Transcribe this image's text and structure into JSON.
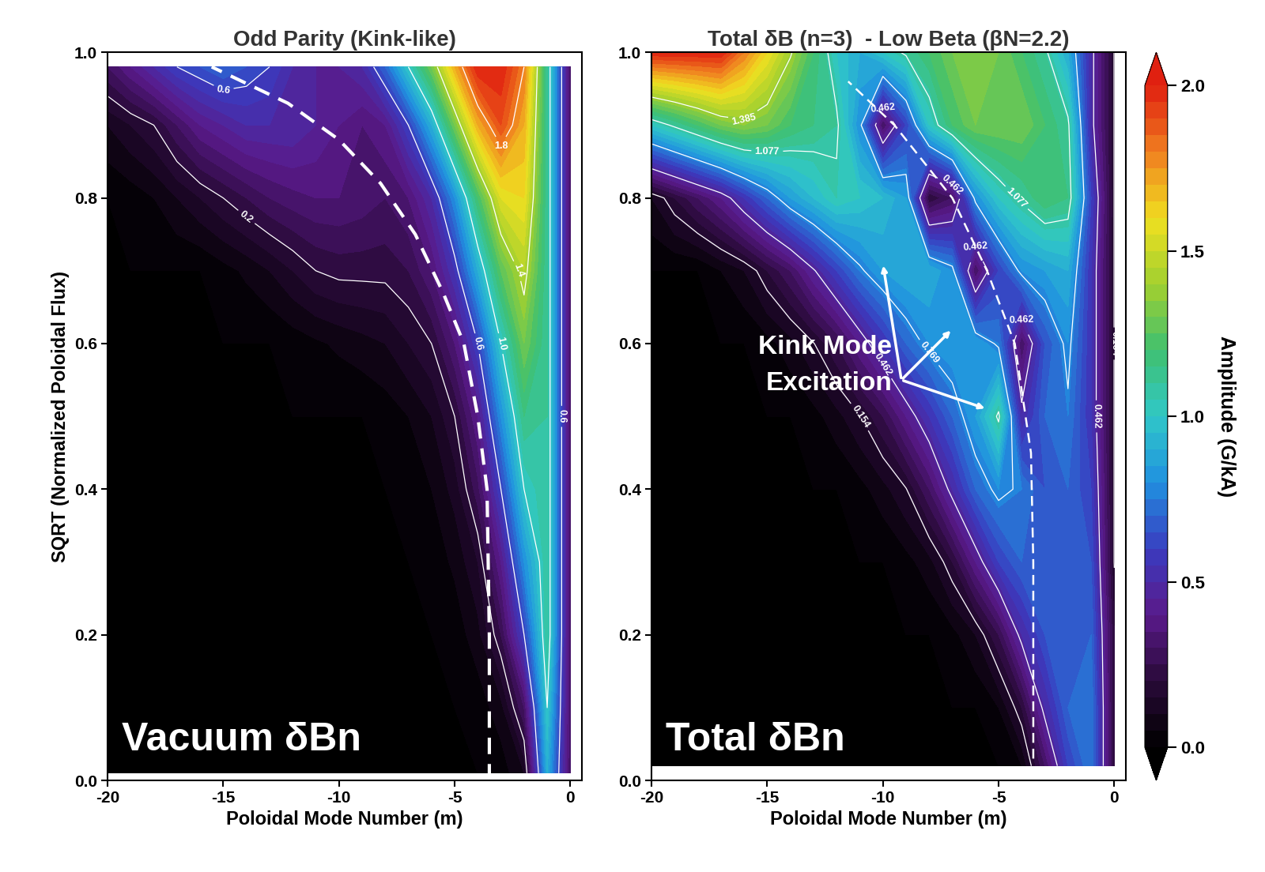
{
  "chart_data": [
    {
      "type": "contour",
      "title": "Odd Parity (Kink-like)",
      "x_label": "Poloidal Mode Number (m)",
      "y_label": "SQRT (Normalized Poloidal Flux)",
      "inset_label": "Vacuum δBn",
      "xlim": [
        -20,
        0.5
      ],
      "ylim": [
        0,
        1.0
      ],
      "xticks": [
        -20,
        -15,
        -10,
        -5,
        0
      ],
      "yticks": [
        {
          "value": 0,
          "label": "0.0"
        },
        {
          "value": 0.2,
          "label": "0.2"
        },
        {
          "value": 0.4,
          "label": "0.4"
        },
        {
          "value": 0.6,
          "label": "0.6"
        },
        {
          "value": 0.8,
          "label": "0.8"
        },
        {
          "value": 1.0,
          "label": "1.0"
        }
      ],
      "m": [
        -20,
        -19,
        -18,
        -17,
        -16,
        -15,
        -14,
        -13,
        -12,
        -11,
        -10,
        -9,
        -8,
        -7,
        -6,
        -5,
        -4,
        -3,
        -2,
        -1,
        0
      ],
      "sqrt_psi": [
        0.01,
        0.1,
        0.2,
        0.3,
        0.4,
        0.5,
        0.6,
        0.7,
        0.8,
        0.9,
        0.98
      ],
      "amplitude": [
        [
          0,
          0,
          0,
          0,
          0,
          0,
          0,
          0,
          0,
          0,
          0,
          0,
          0,
          0,
          0,
          0,
          0,
          0.02,
          0.1,
          0.9,
          0.3
        ],
        [
          0,
          0,
          0,
          0,
          0,
          0,
          0,
          0,
          0,
          0,
          0,
          0,
          0,
          0,
          0,
          0,
          0.02,
          0.08,
          0.3,
          1.0,
          0.3
        ],
        [
          0,
          0,
          0,
          0,
          0,
          0,
          0,
          0,
          0,
          0,
          0,
          0,
          0,
          0,
          0,
          0.02,
          0.08,
          0.25,
          0.6,
          1.1,
          0.3
        ],
        [
          0,
          0,
          0,
          0,
          0,
          0,
          0,
          0,
          0,
          0,
          0,
          0,
          0,
          0,
          0.02,
          0.06,
          0.15,
          0.4,
          0.8,
          1.1,
          0.3
        ],
        [
          0,
          0,
          0,
          0,
          0,
          0,
          0,
          0,
          0,
          0,
          0,
          0,
          0,
          0.02,
          0.05,
          0.12,
          0.28,
          0.6,
          1.0,
          1.1,
          0.3
        ],
        [
          0,
          0,
          0,
          0,
          0,
          0,
          0,
          0,
          0,
          0,
          0,
          0,
          0.02,
          0.05,
          0.1,
          0.2,
          0.4,
          0.8,
          1.15,
          1.1,
          0.3
        ],
        [
          0,
          0,
          0,
          0,
          0,
          0,
          0,
          0,
          0.02,
          0.04,
          0.06,
          0.08,
          0.1,
          0.15,
          0.2,
          0.35,
          0.6,
          1.0,
          1.3,
          1.1,
          0.3
        ],
        [
          0,
          0,
          0,
          0,
          0,
          0.03,
          0.06,
          0.1,
          0.15,
          0.2,
          0.22,
          0.22,
          0.22,
          0.25,
          0.35,
          0.55,
          0.9,
          1.25,
          1.45,
          1.1,
          0.3
        ],
        [
          0,
          0.02,
          0.05,
          0.1,
          0.15,
          0.2,
          0.25,
          0.3,
          0.33,
          0.35,
          0.35,
          0.33,
          0.3,
          0.35,
          0.5,
          0.8,
          1.2,
          1.55,
          1.6,
          1.1,
          0.3
        ],
        [
          0.1,
          0.15,
          0.2,
          0.3,
          0.4,
          0.45,
          0.5,
          0.5,
          0.5,
          0.45,
          0.4,
          0.35,
          0.4,
          0.6,
          0.9,
          1.3,
          1.7,
          1.9,
          1.7,
          1.1,
          0.3
        ],
        [
          0.3,
          0.4,
          0.5,
          0.6,
          0.65,
          0.7,
          0.65,
          0.6,
          0.5,
          0.45,
          0.45,
          0.5,
          0.7,
          1.0,
          1.3,
          1.7,
          2.0,
          2.0,
          1.8,
          1.1,
          0.3
        ]
      ],
      "contour_levels": [
        0.2,
        0.6,
        1.0,
        1.4,
        1.8
      ],
      "resonance_line": {
        "m": [
          -3.5,
          -3.5,
          -3.6,
          -4.0,
          -4.6,
          -5.5,
          -6.7,
          -8.2,
          -10.0,
          -12.2,
          -15.5
        ],
        "sqrt_psi": [
          0.0,
          0.2,
          0.4,
          0.5,
          0.6,
          0.67,
          0.75,
          0.82,
          0.88,
          0.93,
          0.98
        ]
      }
    },
    {
      "type": "contour",
      "title": "Total δB (n=3)  - Low Beta (βN=2.2)",
      "x_label": "Poloidal Mode Number (m)",
      "inset_label": "Total δBn",
      "xlim": [
        -20,
        0.5
      ],
      "ylim": [
        0,
        1.0
      ],
      "xticks": [
        -20,
        -15,
        -10,
        -5,
        0
      ],
      "yticks": [
        {
          "value": 0,
          "label": "0.0"
        },
        {
          "value": 0.2,
          "label": "0.2"
        },
        {
          "value": 0.4,
          "label": "0.4"
        },
        {
          "value": 0.6,
          "label": "0.6"
        },
        {
          "value": 0.8,
          "label": "0.8"
        },
        {
          "value": 1.0,
          "label": "1.0"
        }
      ],
      "m": [
        -20,
        -19,
        -18,
        -17,
        -16,
        -15,
        -14,
        -13,
        -12,
        -11,
        -10,
        -9,
        -8,
        -7,
        -6,
        -5,
        -4,
        -3,
        -2,
        -1,
        0
      ],
      "sqrt_psi": [
        0.02,
        0.1,
        0.2,
        0.3,
        0.4,
        0.5,
        0.6,
        0.7,
        0.8,
        0.9,
        1.0
      ],
      "amplitude": [
        [
          0,
          0,
          0,
          0,
          0,
          0,
          0,
          0,
          0,
          0,
          0,
          0,
          0,
          0,
          0,
          0,
          0.05,
          0.3,
          0.6,
          0.75,
          0.2
        ],
        [
          0,
          0,
          0,
          0,
          0,
          0,
          0,
          0,
          0,
          0,
          0,
          0,
          0,
          0,
          0,
          0.05,
          0.2,
          0.5,
          0.7,
          0.75,
          0.2
        ],
        [
          0,
          0,
          0,
          0,
          0,
          0,
          0,
          0,
          0,
          0,
          0,
          0,
          0,
          0.03,
          0.1,
          0.25,
          0.5,
          0.65,
          0.7,
          0.7,
          0.2
        ],
        [
          0,
          0,
          0,
          0,
          0,
          0,
          0,
          0,
          0,
          0,
          0,
          0.03,
          0.08,
          0.2,
          0.4,
          0.6,
          0.7,
          0.7,
          0.7,
          0.65,
          0.15
        ],
        [
          0,
          0,
          0,
          0,
          0,
          0,
          0,
          0,
          0,
          0.03,
          0.08,
          0.15,
          0.3,
          0.5,
          0.7,
          0.8,
          0.75,
          0.65,
          0.7,
          0.6,
          0.15
        ],
        [
          0,
          0,
          0,
          0,
          0,
          0,
          0,
          0.03,
          0.08,
          0.15,
          0.25,
          0.4,
          0.55,
          0.7,
          0.85,
          1.1,
          0.5,
          0.7,
          0.75,
          0.55,
          0.15
        ],
        [
          0,
          0,
          0,
          0,
          0,
          0.03,
          0.08,
          0.15,
          0.25,
          0.4,
          0.55,
          0.7,
          0.8,
          0.85,
          0.85,
          0.75,
          0.3,
          0.65,
          0.8,
          0.55,
          0.15
        ],
        [
          0,
          0,
          0,
          0.05,
          0.1,
          0.2,
          0.3,
          0.45,
          0.6,
          0.75,
          0.85,
          0.9,
          0.9,
          0.8,
          0.3,
          0.6,
          0.8,
          0.85,
          0.9,
          0.55,
          0.15
        ],
        [
          0.1,
          0.2,
          0.3,
          0.4,
          0.55,
          0.7,
          0.85,
          0.95,
          1.05,
          1.0,
          0.95,
          0.85,
          0.2,
          0.3,
          0.8,
          1.0,
          1.1,
          1.2,
          1.15,
          0.6,
          0.15
        ],
        [
          1.0,
          1.1,
          1.2,
          1.3,
          1.35,
          1.3,
          1.2,
          1.15,
          1.1,
          0.8,
          0.3,
          0.6,
          1.0,
          1.2,
          1.3,
          1.3,
          1.3,
          1.2,
          1.1,
          0.5,
          0.15
        ],
        [
          2.0,
          2.0,
          2.0,
          2.0,
          1.8,
          1.6,
          1.4,
          1.2,
          1.0,
          0.9,
          1.0,
          1.1,
          1.2,
          1.3,
          1.35,
          1.3,
          1.2,
          1.1,
          0.9,
          0.5,
          0.15
        ]
      ],
      "contour_levels": [
        0.154,
        0.462,
        0.769,
        1.077,
        1.385
      ],
      "resonance_line": {
        "m": [
          -3.5,
          -3.5,
          -3.6,
          -4.3,
          -5.5,
          -7.0,
          -9.5,
          -11.5
        ],
        "sqrt_psi": [
          0.03,
          0.3,
          0.45,
          0.6,
          0.7,
          0.8,
          0.9,
          0.96
        ]
      },
      "annotations": [
        {
          "text": "Kink Mode\nExcitation"
        }
      ],
      "colorbar": {
        "label": "Amplitude (G/kA)",
        "range": [
          0,
          2.0
        ],
        "ticks": [
          {
            "value": 0,
            "label": "0.0"
          },
          {
            "value": 0.5,
            "label": "0.5"
          },
          {
            "value": 1.0,
            "label": "1.0"
          },
          {
            "value": 1.5,
            "label": "1.5"
          },
          {
            "value": 2.0,
            "label": "2.0"
          }
        ]
      }
    }
  ]
}
